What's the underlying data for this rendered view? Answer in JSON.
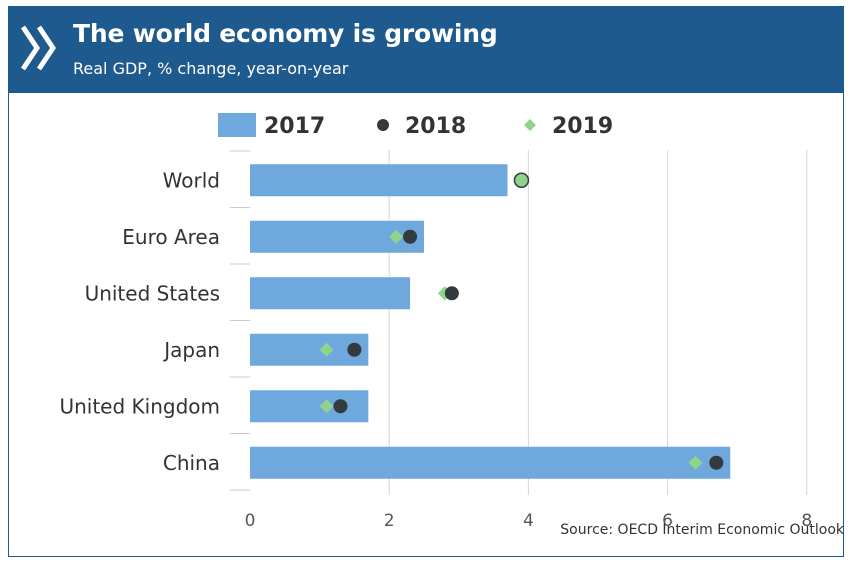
{
  "header": {
    "title": "The world economy is growing",
    "subtitle": "Real GDP, % change, year-on-year"
  },
  "source": "Source: OECD Interim Economic Outlook",
  "colors": {
    "header_bg": "#1f5a8e",
    "bar_2017": "#6fa8dc",
    "dot_2018": "#333a40",
    "marker_2019": "#8fd48a"
  },
  "chart_data": {
    "type": "bar",
    "orientation": "horizontal",
    "categories": [
      "World",
      "Euro Area",
      "United States",
      "Japan",
      "United Kingdom",
      "China"
    ],
    "series": [
      {
        "name": "2017",
        "mark": "bar",
        "values": [
          3.7,
          2.5,
          2.3,
          1.7,
          1.7,
          6.9
        ]
      },
      {
        "name": "2018",
        "mark": "circle",
        "values": [
          3.9,
          2.3,
          2.9,
          1.5,
          1.3,
          6.7
        ]
      },
      {
        "name": "2019",
        "mark": "diamond",
        "values": [
          3.9,
          2.1,
          2.8,
          1.1,
          1.1,
          6.4
        ]
      }
    ],
    "xlim": [
      0,
      8
    ],
    "xticks": [
      "0",
      "2",
      "4",
      "6",
      "8"
    ],
    "grid": true,
    "legend_position": "top"
  }
}
